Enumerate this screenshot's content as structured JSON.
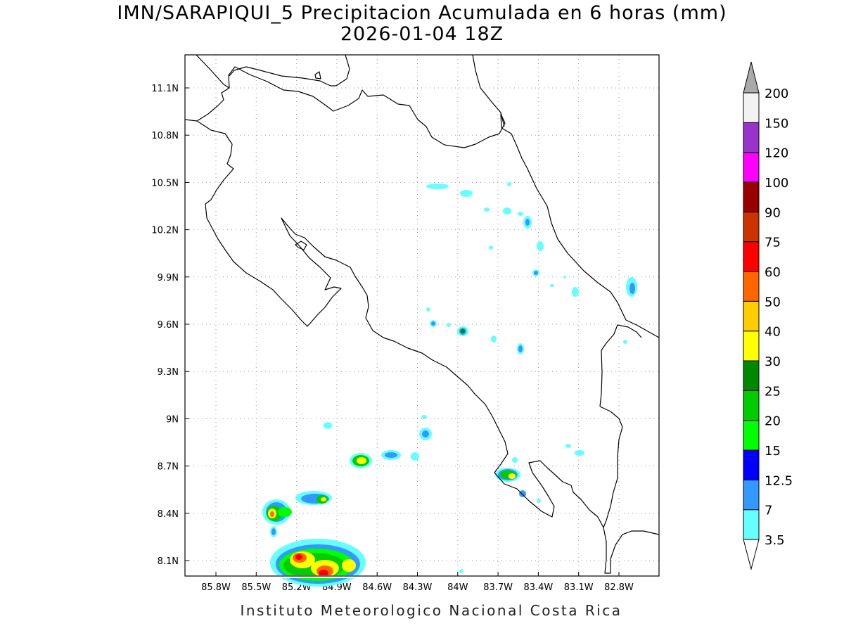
{
  "title": {
    "line1": "IMN/SARAPIQUI_5 Precipitacion Acumulada en 6 horas (mm)",
    "line2": "2026-01-04 18Z"
  },
  "footer": "Instituto Meteorologico Nacional Costa Rica",
  "map": {
    "lon_range": [
      -86.0,
      -82.4
    ],
    "lat_range": [
      8.0,
      11.3
    ],
    "lat_ticks": [
      "11.1N",
      "10.8N",
      "10.5N",
      "10.2N",
      "9.9N",
      "9.6N",
      "9.3N",
      "9N",
      "8.7N",
      "8.4N",
      "8.1N"
    ],
    "lon_ticks": [
      "85.8W",
      "85.5W",
      "85.2W",
      "84.9W",
      "84.6W",
      "84.3W",
      "84W",
      "83.7W",
      "83.4W",
      "83.1W",
      "82.8W"
    ],
    "grid": "dotted"
  },
  "colorbar": {
    "labels": [
      "3.5",
      "7",
      "12.5",
      "15",
      "20",
      "25",
      "30",
      "40",
      "50",
      "60",
      "75",
      "90",
      "100",
      "120",
      "150",
      "200"
    ],
    "colors": [
      "#66ffff",
      "#3399ff",
      "#0000ff",
      "#00ff00",
      "#00cc00",
      "#008800",
      "#ffff00",
      "#ffcc00",
      "#ff6600",
      "#ff0000",
      "#cc3300",
      "#990000",
      "#ff00ff",
      "#9933cc",
      "#f2f2f2"
    ],
    "top_arrow_color": "#aaaaaa",
    "bottom_arrow_color": "#ffffff"
  }
}
